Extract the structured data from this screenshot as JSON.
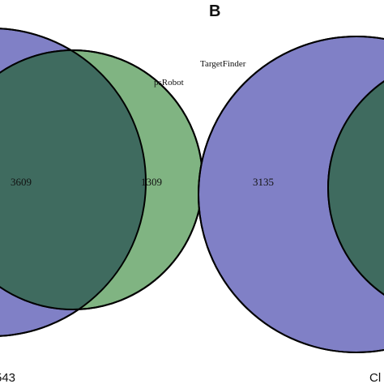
{
  "panel_b": {
    "letter": "B",
    "set_a_label": "TargetFinder",
    "region_a_only": "3135",
    "cut_off_label": "Cl"
  },
  "panel_a": {
    "set_b_label": "psRobot",
    "region_overlap": "3609",
    "region_b_only": "1309",
    "cut_off_label": "543"
  },
  "colors": {
    "set_blue": "#8080c6",
    "set_green": "#80b482",
    "overlap": "#3f6b5f",
    "stroke": "#000000"
  }
}
